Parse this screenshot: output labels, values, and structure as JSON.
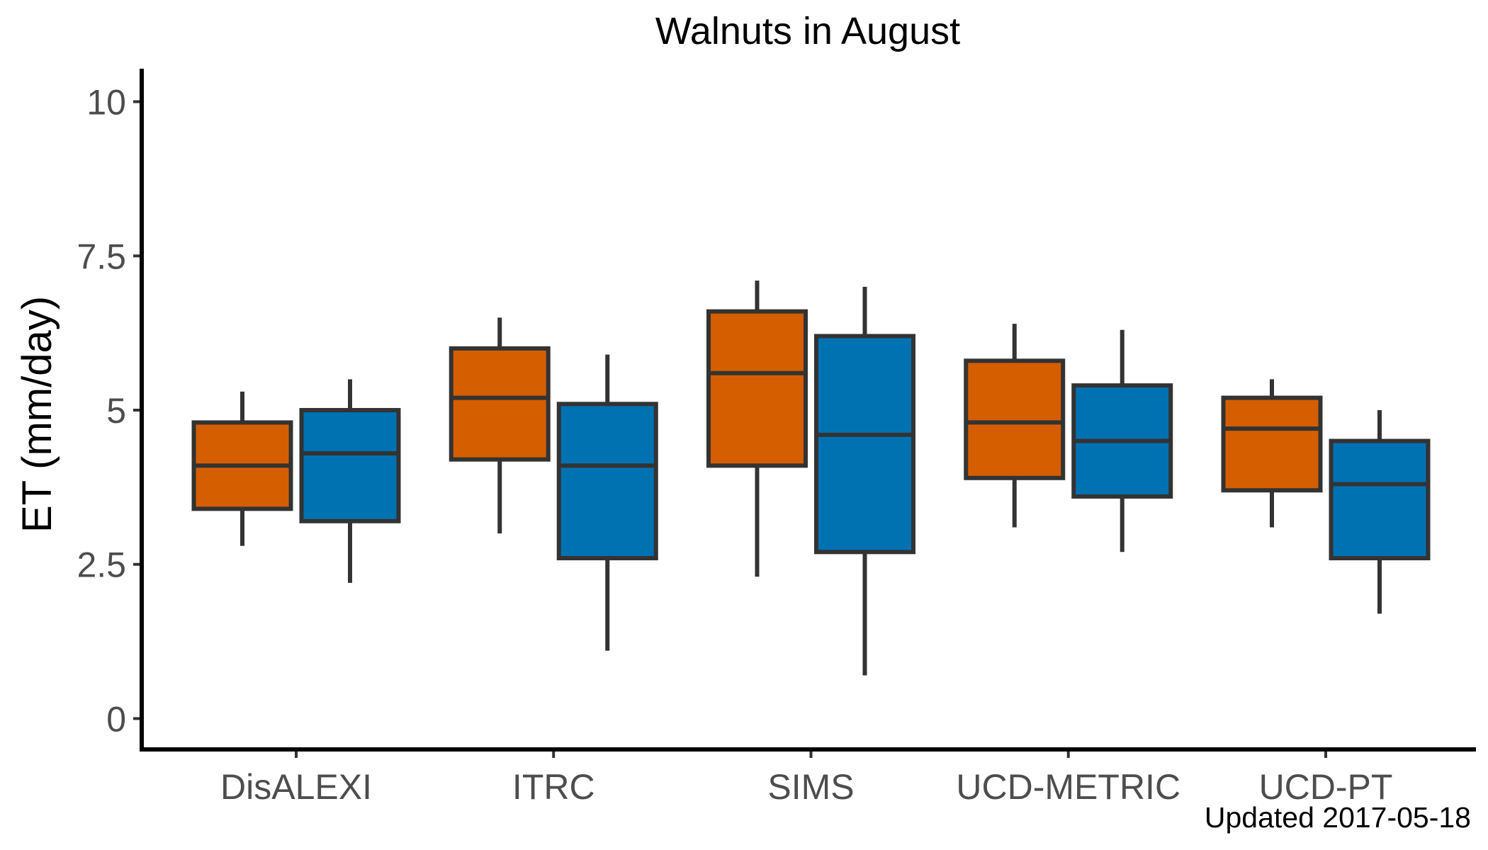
{
  "chart_data": {
    "type": "box",
    "title": "Walnuts in August",
    "xlabel": "",
    "ylabel": "ET (mm/day)",
    "ylim": [
      -0.5,
      10.5
    ],
    "yticks": [
      0,
      2.5,
      5,
      7.5,
      10
    ],
    "ytick_labels": [
      "0",
      "2.5",
      "5",
      "7.5",
      "10"
    ],
    "categories": [
      "DisALEXI",
      "ITRC",
      "SIMS",
      "UCD-METRIC",
      "UCD-PT"
    ],
    "grid": false,
    "legend": "none",
    "colors": {
      "series_1": "#d55e00",
      "series_2": "#0072b2",
      "outline": "#333333",
      "axis": "#000000",
      "tick_text": "#4d4d4d"
    },
    "series": [
      {
        "color": "#d55e00",
        "boxes": [
          {
            "category": "DisALEXI",
            "min": 2.8,
            "q1": 3.4,
            "median": 4.1,
            "q3": 4.8,
            "max": 5.3
          },
          {
            "category": "ITRC",
            "min": 3.0,
            "q1": 4.2,
            "median": 5.2,
            "q3": 6.0,
            "max": 6.5
          },
          {
            "category": "SIMS",
            "min": 2.3,
            "q1": 4.1,
            "median": 5.6,
            "q3": 6.6,
            "max": 7.1
          },
          {
            "category": "UCD-METRIC",
            "min": 3.1,
            "q1": 3.9,
            "median": 4.8,
            "q3": 5.8,
            "max": 6.4
          },
          {
            "category": "UCD-PT",
            "min": 3.1,
            "q1": 3.7,
            "median": 4.7,
            "q3": 5.2,
            "max": 5.5
          }
        ]
      },
      {
        "color": "#0072b2",
        "boxes": [
          {
            "category": "DisALEXI",
            "min": 2.2,
            "q1": 3.2,
            "median": 4.3,
            "q3": 5.0,
            "max": 5.5
          },
          {
            "category": "ITRC",
            "min": 1.1,
            "q1": 2.6,
            "median": 4.1,
            "q3": 5.1,
            "max": 5.9
          },
          {
            "category": "SIMS",
            "min": 0.7,
            "q1": 2.7,
            "median": 4.6,
            "q3": 6.2,
            "max": 7.0
          },
          {
            "category": "UCD-METRIC",
            "min": 2.7,
            "q1": 3.6,
            "median": 4.5,
            "q3": 5.4,
            "max": 6.3
          },
          {
            "category": "UCD-PT",
            "min": 1.7,
            "q1": 2.6,
            "median": 3.8,
            "q3": 4.5,
            "max": 5.0
          }
        ]
      }
    ],
    "caption": "Updated  2017-05-18"
  }
}
